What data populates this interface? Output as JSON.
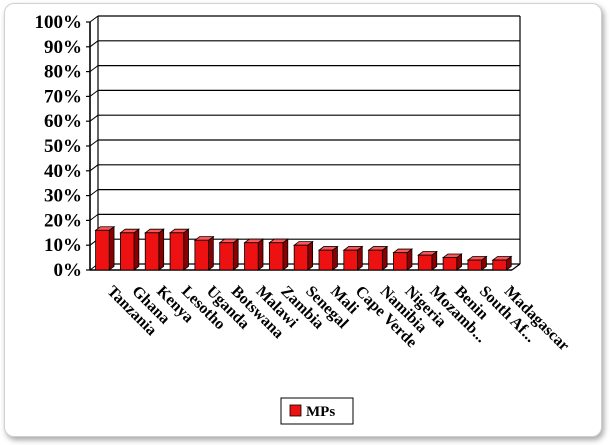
{
  "chart_data": {
    "type": "bar",
    "categories": [
      "Tanzania",
      "Ghana",
      "Kenya",
      "Lesotho",
      "Uganda",
      "Botswana",
      "Malawi",
      "Zambia",
      "Senegal",
      "Mali",
      "Cape Verde",
      "Namibia",
      "Nigeria",
      "Mozamb...",
      "Benin",
      "South Af...",
      "Madagascar"
    ],
    "series": [
      {
        "name": "MPs",
        "values": [
          16,
          15,
          15,
          15,
          12,
          11,
          11,
          11,
          10,
          8,
          8,
          8,
          7,
          6,
          5,
          4,
          4
        ]
      }
    ],
    "ylim": [
      0,
      100
    ],
    "yticks": [
      "0%",
      "10%",
      "20%",
      "30%",
      "40%",
      "50%",
      "60%",
      "70%",
      "80%",
      "90%",
      "100%"
    ],
    "grid": true,
    "legend_position": "bottom",
    "colors": {
      "bar_front": "#ee1111",
      "bar_side": "#8a0000",
      "bar_top": "#ff5555"
    }
  }
}
